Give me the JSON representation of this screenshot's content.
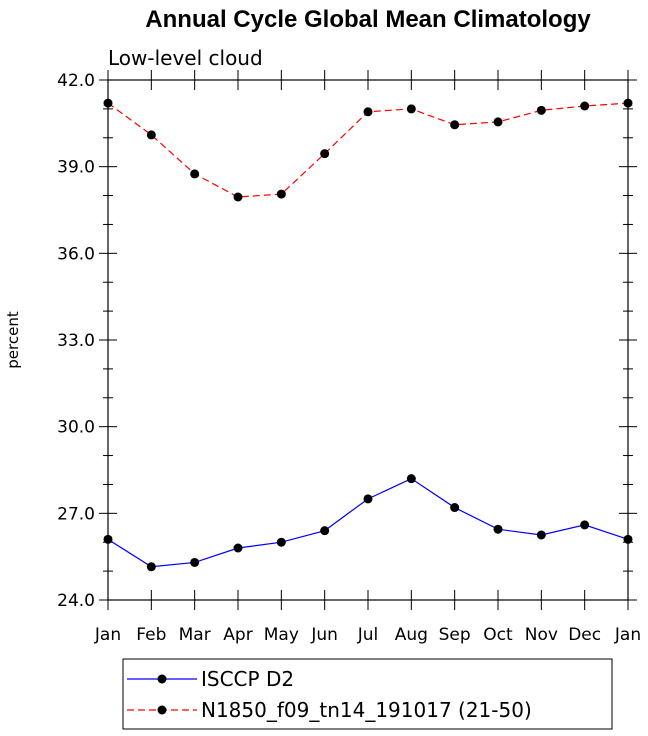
{
  "chart_data": {
    "type": "line",
    "title": "Annual Cycle Global Mean Climatology",
    "subtitle": "Low-level cloud",
    "xlabel": "",
    "ylabel": "percent",
    "categories": [
      "Jan",
      "Feb",
      "Mar",
      "Apr",
      "May",
      "Jun",
      "Jul",
      "Aug",
      "Sep",
      "Oct",
      "Nov",
      "Dec",
      "Jan"
    ],
    "ylim": [
      24.0,
      42.0
    ],
    "yticks": [
      "24.0",
      "27.0",
      "30.0",
      "33.0",
      "36.0",
      "39.0",
      "42.0"
    ],
    "grid": false,
    "legend_position": "bottom",
    "series": [
      {
        "name": "ISCCP D2",
        "color": "#0000ff",
        "dash": "solid",
        "marker": "filled-circle",
        "values": [
          26.1,
          25.15,
          25.3,
          25.8,
          26.0,
          26.4,
          27.5,
          28.2,
          27.2,
          26.45,
          26.25,
          26.6,
          26.1
        ]
      },
      {
        "name": "N1850_f09_tn14_191017 (21-50)",
        "color": "#ff0000",
        "dash": "dashed",
        "marker": "filled-circle",
        "values": [
          41.2,
          40.1,
          38.75,
          37.95,
          38.05,
          39.45,
          40.9,
          41.0,
          40.45,
          40.55,
          40.95,
          41.1,
          41.2
        ]
      }
    ]
  }
}
